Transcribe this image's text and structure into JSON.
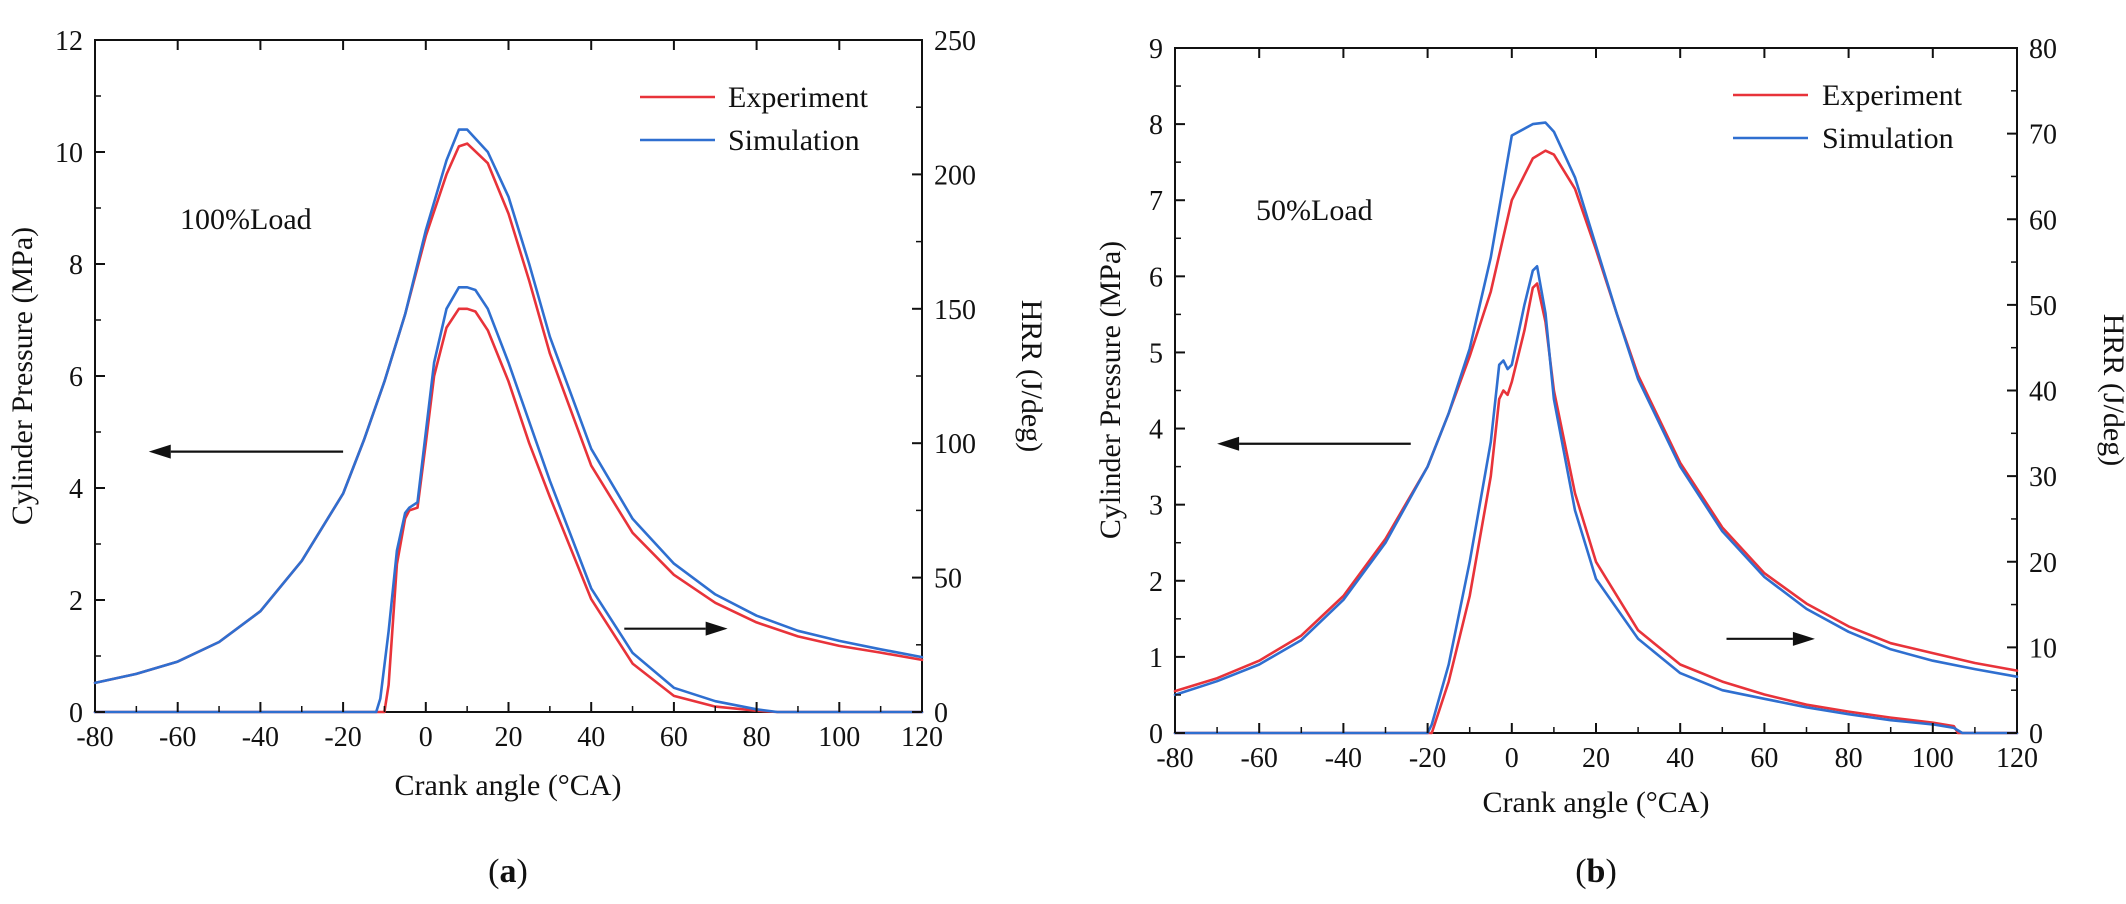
{
  "chart_data": [
    {
      "type": "line",
      "panel_label": "a",
      "annotation": "100%Load",
      "xlabel": "Crank angle (°CA)",
      "ylabel_left": "Cylinder Pressure (MPa)",
      "ylabel_right": "HRR (J/deg)",
      "xlim": [
        -80,
        120
      ],
      "ylim_left": [
        0,
        12
      ],
      "ylim_right": [
        0,
        250
      ],
      "xticks": [
        -80,
        -60,
        -40,
        -20,
        0,
        20,
        40,
        60,
        80,
        100,
        120
      ],
      "yticks_left": [
        0,
        2,
        4,
        6,
        8,
        10,
        12
      ],
      "yticks_right": [
        0,
        50,
        100,
        150,
        200,
        250
      ],
      "legend": [
        "Experiment",
        "Simulation"
      ],
      "legend_position": "top-right",
      "arrows": [
        {
          "axis": "left",
          "direction": "left",
          "from": [
            -20,
            4.65
          ],
          "to": [
            -67,
            4.65
          ]
        },
        {
          "axis": "right",
          "direction": "right",
          "from": [
            48,
            31
          ],
          "to": [
            73,
            31
          ]
        }
      ],
      "series": [
        {
          "name": "Experiment",
          "quantity": "pressure",
          "axis": "left",
          "color": "#e8333a",
          "x": [
            -80,
            -70,
            -60,
            -50,
            -40,
            -30,
            -20,
            -15,
            -10,
            -5,
            0,
            5,
            8,
            10,
            15,
            20,
            25,
            30,
            40,
            50,
            60,
            70,
            80,
            90,
            100,
            110,
            120
          ],
          "y": [
            0.52,
            0.68,
            0.9,
            1.25,
            1.8,
            2.7,
            3.9,
            4.85,
            5.9,
            7.1,
            8.5,
            9.6,
            10.1,
            10.15,
            9.8,
            8.9,
            7.7,
            6.4,
            4.4,
            3.2,
            2.45,
            1.95,
            1.6,
            1.35,
            1.18,
            1.06,
            0.93
          ]
        },
        {
          "name": "Simulation",
          "quantity": "pressure",
          "axis": "left",
          "color": "#2f6fd0",
          "x": [
            -80,
            -70,
            -60,
            -50,
            -40,
            -30,
            -20,
            -15,
            -10,
            -5,
            0,
            5,
            8,
            10,
            15,
            20,
            25,
            30,
            40,
            50,
            60,
            70,
            80,
            90,
            100,
            110,
            120
          ],
          "y": [
            0.52,
            0.68,
            0.9,
            1.25,
            1.8,
            2.7,
            3.9,
            4.85,
            5.9,
            7.1,
            8.6,
            9.85,
            10.4,
            10.4,
            10.0,
            9.2,
            8.0,
            6.7,
            4.7,
            3.45,
            2.65,
            2.1,
            1.72,
            1.45,
            1.27,
            1.12,
            0.98
          ]
        },
        {
          "name": "Experiment",
          "quantity": "HRR",
          "axis": "right",
          "color": "#e8333a",
          "x": [
            -80,
            -20,
            -11,
            -10,
            -9,
            -7,
            -5,
            -4,
            -2,
            0,
            2,
            5,
            8,
            10,
            12,
            15,
            20,
            25,
            30,
            40,
            50,
            60,
            70,
            80,
            85,
            90,
            100,
            110,
            120
          ],
          "y": [
            0,
            0,
            0,
            0,
            10,
            55,
            72,
            75,
            76,
            100,
            125,
            143,
            150,
            150,
            149,
            142,
            123,
            100,
            80,
            42,
            18,
            6,
            2,
            0.5,
            0,
            0,
            0,
            0,
            0
          ]
        },
        {
          "name": "Simulation",
          "quantity": "HRR",
          "axis": "right",
          "color": "#2f6fd0",
          "x": [
            -80,
            -20,
            -14,
            -12,
            -11,
            -9,
            -7,
            -5,
            -4,
            -2,
            0,
            2,
            5,
            8,
            10,
            12,
            15,
            20,
            25,
            30,
            40,
            50,
            60,
            70,
            80,
            85,
            90,
            100,
            110,
            120
          ],
          "y": [
            0,
            0,
            0,
            0,
            5,
            30,
            60,
            74,
            76,
            78,
            104,
            130,
            150,
            158,
            158,
            157,
            150,
            130,
            108,
            86,
            46,
            22,
            9,
            4,
            1,
            0,
            0,
            0,
            0,
            0
          ]
        }
      ]
    },
    {
      "type": "line",
      "panel_label": "b",
      "annotation": "50%Load",
      "xlabel": "Crank angle (°CA)",
      "ylabel_left": "Cylinder Pressure (MPa)",
      "ylabel_right": "HRR (J/deg)",
      "xlim": [
        -80,
        120
      ],
      "ylim_left": [
        0,
        9
      ],
      "ylim_right": [
        0,
        80
      ],
      "xticks": [
        -80,
        -60,
        -40,
        -20,
        0,
        20,
        40,
        60,
        80,
        100,
        120
      ],
      "yticks_left": [
        0,
        1,
        2,
        3,
        4,
        5,
        6,
        7,
        8,
        9
      ],
      "yticks_right": [
        0,
        10,
        20,
        30,
        40,
        50,
        60,
        70,
        80
      ],
      "legend": [
        "Experiment",
        "Simulation"
      ],
      "legend_position": "top-right",
      "arrows": [
        {
          "axis": "left",
          "direction": "left",
          "from": [
            -24,
            3.8
          ],
          "to": [
            -70,
            3.8
          ]
        },
        {
          "axis": "right",
          "direction": "right",
          "from": [
            51,
            11
          ],
          "to": [
            72,
            11
          ]
        }
      ],
      "series": [
        {
          "name": "Experiment",
          "quantity": "pressure",
          "axis": "left",
          "color": "#e8333a",
          "x": [
            -80,
            -70,
            -60,
            -50,
            -40,
            -30,
            -20,
            -15,
            -10,
            -5,
            0,
            5,
            8,
            10,
            15,
            20,
            25,
            30,
            40,
            50,
            60,
            70,
            80,
            90,
            100,
            110,
            120
          ],
          "y": [
            0.55,
            0.72,
            0.95,
            1.28,
            1.8,
            2.55,
            3.5,
            4.2,
            4.95,
            5.8,
            7.0,
            7.55,
            7.65,
            7.6,
            7.15,
            6.35,
            5.5,
            4.7,
            3.55,
            2.7,
            2.1,
            1.7,
            1.4,
            1.18,
            1.05,
            0.92,
            0.82
          ]
        },
        {
          "name": "Simulation",
          "quantity": "pressure",
          "axis": "left",
          "color": "#2f6fd0",
          "x": [
            -80,
            -70,
            -60,
            -50,
            -40,
            -30,
            -20,
            -15,
            -10,
            -5,
            0,
            5,
            8,
            10,
            15,
            20,
            25,
            30,
            40,
            50,
            60,
            70,
            80,
            90,
            100,
            110,
            120
          ],
          "y": [
            0.5,
            0.68,
            0.9,
            1.22,
            1.75,
            2.5,
            3.5,
            4.2,
            5.05,
            6.25,
            7.85,
            8.0,
            8.02,
            7.9,
            7.3,
            6.4,
            5.5,
            4.65,
            3.5,
            2.65,
            2.05,
            1.63,
            1.33,
            1.1,
            0.95,
            0.84,
            0.74
          ]
        },
        {
          "name": "Experiment",
          "quantity": "HRR",
          "axis": "right",
          "color": "#e8333a",
          "x": [
            -80,
            -20,
            -19,
            -15,
            -10,
            -5,
            -3,
            -2,
            -1,
            0,
            3,
            5,
            6,
            8,
            10,
            15,
            20,
            30,
            40,
            50,
            60,
            70,
            80,
            90,
            100,
            105,
            106,
            110,
            120
          ],
          "y": [
            0,
            0,
            0,
            6,
            16,
            30,
            39,
            40,
            39.5,
            41,
            47,
            52,
            52.5,
            48,
            40,
            28,
            20,
            12,
            8,
            6,
            4.5,
            3.3,
            2.5,
            1.8,
            1.2,
            0.8,
            0,
            0,
            0
          ]
        },
        {
          "name": "Simulation",
          "quantity": "HRR",
          "axis": "right",
          "color": "#2f6fd0",
          "x": [
            -80,
            -20,
            -19,
            -15,
            -10,
            -5,
            -3,
            -2,
            -1,
            0,
            3,
            5,
            6,
            8,
            10,
            15,
            20,
            30,
            40,
            50,
            60,
            70,
            80,
            90,
            100,
            105,
            107,
            108,
            110,
            120
          ],
          "y": [
            0,
            0,
            1,
            8,
            20,
            34,
            43,
            43.5,
            42.5,
            43,
            50,
            54,
            54.5,
            49,
            39,
            26,
            18,
            11,
            7,
            5,
            4,
            3,
            2.2,
            1.5,
            1,
            0.6,
            0,
            0,
            0,
            0
          ]
        }
      ]
    }
  ]
}
